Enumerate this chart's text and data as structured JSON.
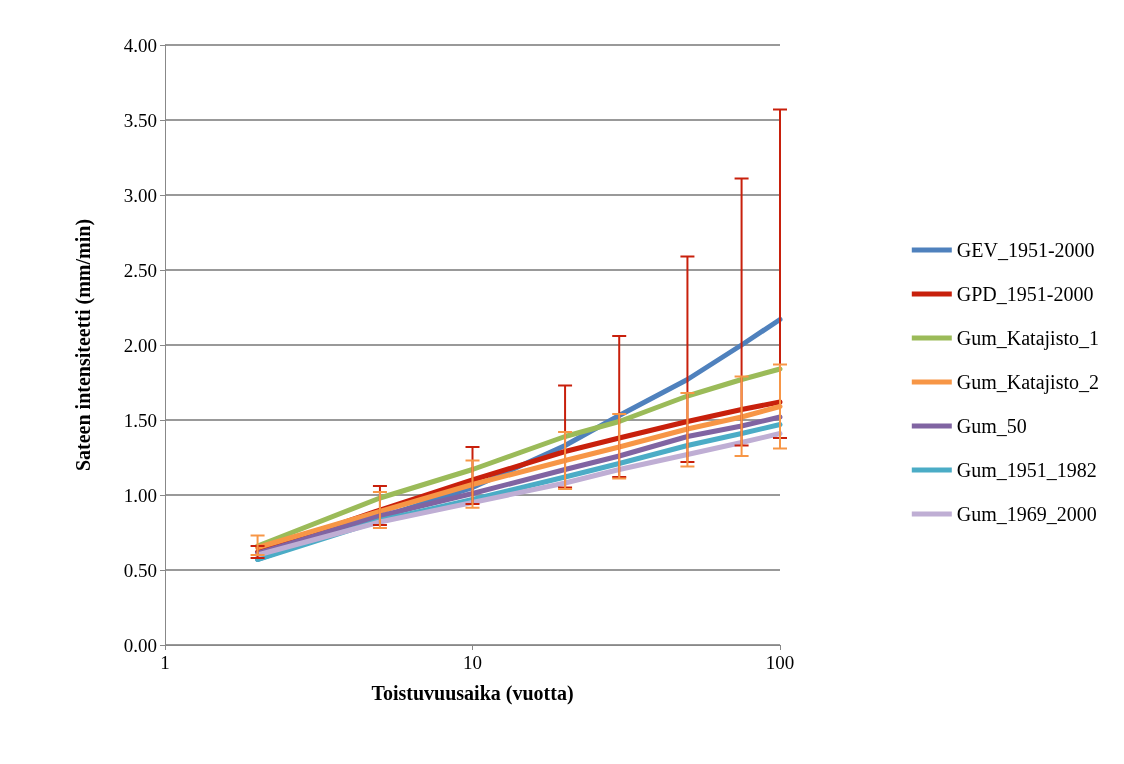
{
  "chart_data": {
    "type": "line",
    "xlabel": "Toistuvuusaika (vuotta)",
    "ylabel": "Sateen intensiteetti (mm/min)",
    "x": [
      2,
      5,
      10,
      20,
      30,
      50,
      75,
      100
    ],
    "log": "x",
    "xlim": [
      1,
      100
    ],
    "xticks": [
      1,
      10,
      100
    ],
    "ylim": [
      0,
      4
    ],
    "yticks": [
      {
        "value": 0,
        "label": "0.00"
      },
      {
        "value": 0.5,
        "label": "0.50"
      },
      {
        "value": 1,
        "label": "1.00"
      },
      {
        "value": 1.5,
        "label": "1.50"
      },
      {
        "value": 2,
        "label": "2.00"
      },
      {
        "value": 2.5,
        "label": "2.50"
      },
      {
        "value": 3,
        "label": "3.00"
      },
      {
        "value": 3.5,
        "label": "3.50"
      },
      {
        "value": 4,
        "label": "4.00"
      }
    ],
    "grid": "y",
    "legend": "right",
    "marker": "none",
    "line_style": "solid",
    "series": [
      {
        "name": "GEV_1951-2000",
        "color": "#4f81bd",
        "values": [
          0.57,
          0.85,
          1.05,
          1.33,
          1.53,
          1.77,
          2.0,
          2.17
        ]
      },
      {
        "name": "GPD_1951-2000",
        "color": "#c8200c",
        "values": [
          0.62,
          0.9,
          1.1,
          1.29,
          1.38,
          1.49,
          1.57,
          1.62
        ],
        "errors": [
          [
            0.58,
            0.66
          ],
          [
            0.8,
            1.06
          ],
          [
            0.94,
            1.32
          ],
          [
            1.05,
            1.73
          ],
          [
            1.12,
            2.06
          ],
          [
            1.22,
            2.59
          ],
          [
            1.33,
            3.11
          ],
          [
            1.38,
            3.57
          ]
        ]
      },
      {
        "name": "Gum_Katajisto_1",
        "color": "#9bbb59",
        "values": [
          0.66,
          0.98,
          1.17,
          1.39,
          1.49,
          1.66,
          1.77,
          1.84
        ]
      },
      {
        "name": "Gum_Katajisto_2",
        "color": "#f79646",
        "values": [
          0.65,
          0.89,
          1.07,
          1.23,
          1.32,
          1.44,
          1.52,
          1.59
        ],
        "errors": [
          [
            0.6,
            0.73
          ],
          [
            0.78,
            1.02
          ],
          [
            0.915,
            1.23
          ],
          [
            1.04,
            1.42
          ],
          [
            1.11,
            1.54
          ],
          [
            1.19,
            1.68
          ],
          [
            1.26,
            1.79
          ],
          [
            1.31,
            1.87
          ]
        ]
      },
      {
        "name": "Gum_50",
        "color": "#8064a2",
        "values": [
          0.61,
          0.86,
          1.01,
          1.17,
          1.26,
          1.39,
          1.46,
          1.52
        ]
      },
      {
        "name": "Gum_1951_1982",
        "color": "#4bacc6",
        "values": [
          0.57,
          0.83,
          0.97,
          1.12,
          1.21,
          1.33,
          1.41,
          1.47
        ]
      },
      {
        "name": "Gum_1969_2000",
        "color": "#bfaed4",
        "values": [
          0.6,
          0.82,
          0.95,
          1.08,
          1.17,
          1.27,
          1.35,
          1.41
        ]
      }
    ]
  }
}
